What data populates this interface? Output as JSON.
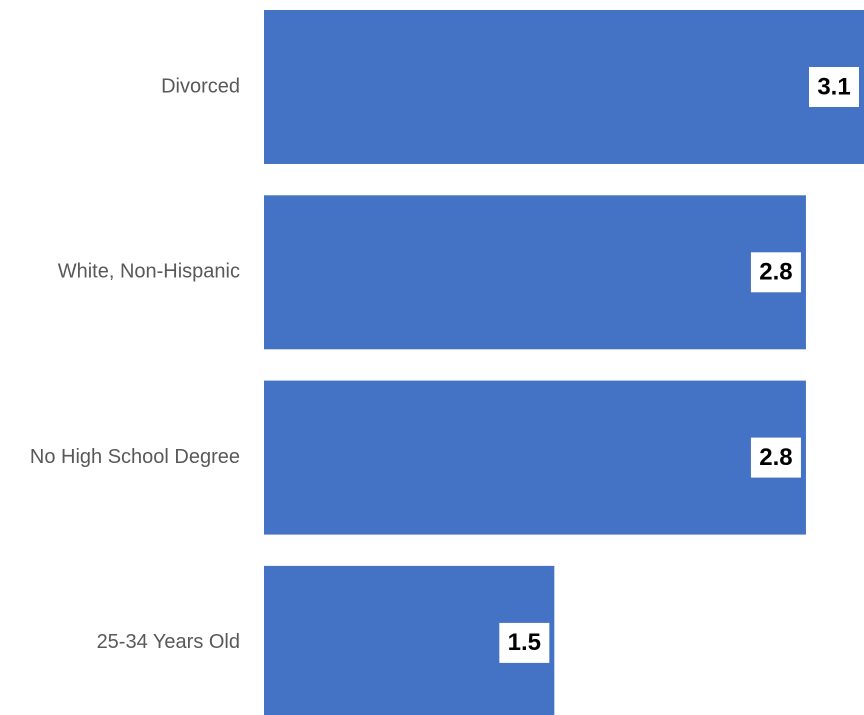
{
  "chart_data": {
    "type": "bar",
    "orientation": "horizontal",
    "categories": [
      "Divorced",
      "White, Non-Hispanic",
      "No High School Degree",
      "25-34 Years Old"
    ],
    "values": [
      3.1,
      2.8,
      2.8,
      1.5
    ],
    "value_labels": [
      "3.1",
      "2.8",
      "2.8",
      "1.5"
    ],
    "title": "",
    "xlabel": "",
    "ylabel": "",
    "xlim": [
      0,
      3.1
    ],
    "grid": false,
    "legend": "none",
    "colors": {
      "bar": "#4472C4",
      "label_box": "#FFFFFF",
      "category_text": "#595959",
      "value_text": "#000000"
    }
  }
}
